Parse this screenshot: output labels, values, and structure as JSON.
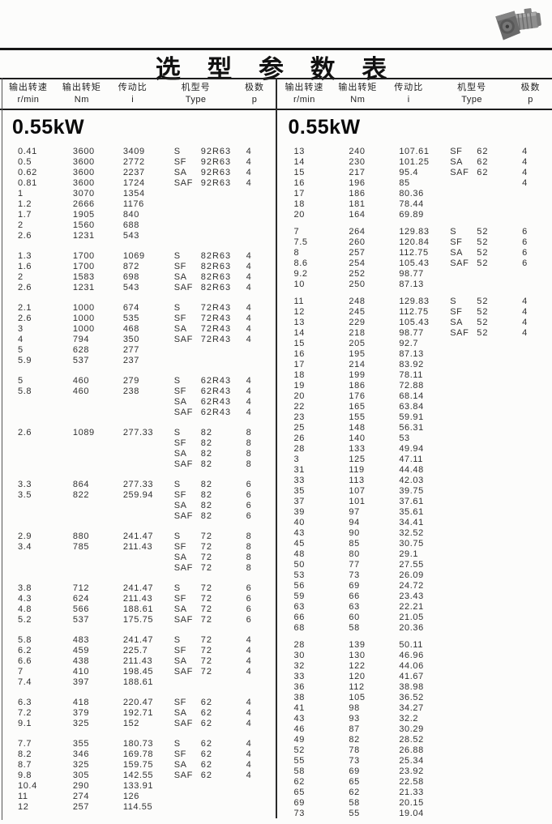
{
  "page": {
    "title": "选 型 参 数 表"
  },
  "table": {
    "columns": [
      {
        "name": "输出转速",
        "unit": "r/min"
      },
      {
        "name": "输出转矩",
        "unit": "Nm"
      },
      {
        "name": "传动比",
        "unit": "i"
      },
      {
        "name": "机型号",
        "unit": "Type"
      },
      {
        "name": "极数",
        "unit": "p"
      }
    ],
    "left": {
      "section_title": "0.55kW",
      "blocks": [
        [
          [
            "0.41",
            "3600",
            "3409",
            "S",
            "92R63",
            "4"
          ],
          [
            "0.5",
            "3600",
            "2772",
            "SF",
            "92R63",
            "4"
          ],
          [
            "0.62",
            "3600",
            "2237",
            "SA",
            "92R63",
            "4"
          ],
          [
            "0.81",
            "3600",
            "1724",
            "SAF",
            "92R63",
            "4"
          ],
          [
            "1",
            "3070",
            "1354",
            "",
            "",
            ""
          ],
          [
            "1.2",
            "2666",
            "1176",
            "",
            "",
            ""
          ],
          [
            "1.7",
            "1905",
            "840",
            "",
            "",
            ""
          ],
          [
            "2",
            "1560",
            "688",
            "",
            "",
            ""
          ],
          [
            "2.6",
            "1231",
            "543",
            "",
            "",
            ""
          ]
        ],
        [
          [
            "1.3",
            "1700",
            "1069",
            "S",
            "82R63",
            "4"
          ],
          [
            "1.6",
            "1700",
            "872",
            "SF",
            "82R63",
            "4"
          ],
          [
            "2",
            "1583",
            "698",
            "SA",
            "82R63",
            "4"
          ],
          [
            "2.6",
            "1231",
            "543",
            "SAF",
            "82R63",
            "4"
          ]
        ],
        [
          [
            "2.1",
            "1000",
            "674",
            "S",
            "72R43",
            "4"
          ],
          [
            "2.6",
            "1000",
            "535",
            "SF",
            "72R43",
            "4"
          ],
          [
            "3",
            "1000",
            "468",
            "SA",
            "72R43",
            "4"
          ],
          [
            "4",
            "794",
            "350",
            "SAF",
            "72R43",
            "4"
          ],
          [
            "5",
            "628",
            "277",
            "",
            "",
            ""
          ],
          [
            "5.9",
            "537",
            "237",
            "",
            "",
            ""
          ]
        ],
        [
          [
            "5",
            "460",
            "279",
            "S",
            "62R43",
            "4"
          ],
          [
            "5.8",
            "460",
            "238",
            "SF",
            "62R43",
            "4"
          ],
          [
            "",
            "",
            "",
            "SA",
            "62R43",
            "4"
          ],
          [
            "",
            "",
            "",
            "SAF",
            "62R43",
            "4"
          ]
        ],
        [
          [
            "2.6",
            "1089",
            "277.33",
            "S",
            "82",
            "8"
          ],
          [
            "",
            "",
            "",
            "SF",
            "82",
            "8"
          ],
          [
            "",
            "",
            "",
            "SA",
            "82",
            "8"
          ],
          [
            "",
            "",
            "",
            "SAF",
            "82",
            "8"
          ]
        ],
        [
          [
            "3.3",
            "864",
            "277.33",
            "S",
            "82",
            "6"
          ],
          [
            "3.5",
            "822",
            "259.94",
            "SF",
            "82",
            "6"
          ],
          [
            "",
            "",
            "",
            "SA",
            "82",
            "6"
          ],
          [
            "",
            "",
            "",
            "SAF",
            "82",
            "6"
          ]
        ],
        [
          [
            "2.9",
            "880",
            "241.47",
            "S",
            "72",
            "8"
          ],
          [
            "3.4",
            "785",
            "211.43",
            "SF",
            "72",
            "8"
          ],
          [
            "",
            "",
            "",
            "SA",
            "72",
            "8"
          ],
          [
            "",
            "",
            "",
            "SAF",
            "72",
            "8"
          ]
        ],
        [
          [
            "3.8",
            "712",
            "241.47",
            "S",
            "72",
            "6"
          ],
          [
            "4.3",
            "624",
            "211.43",
            "SF",
            "72",
            "6"
          ],
          [
            "4.8",
            "566",
            "188.61",
            "SA",
            "72",
            "6"
          ],
          [
            "5.2",
            "537",
            "175.75",
            "SAF",
            "72",
            "6"
          ]
        ],
        [
          [
            "5.8",
            "483",
            "241.47",
            "S",
            "72",
            "4"
          ],
          [
            "6.2",
            "459",
            "225.7",
            "SF",
            "72",
            "4"
          ],
          [
            "6.6",
            "438",
            "211.43",
            "SA",
            "72",
            "4"
          ],
          [
            "7",
            "410",
            "198.45",
            "SAF",
            "72",
            "4"
          ],
          [
            "7.4",
            "397",
            "188.61",
            "",
            "",
            ""
          ]
        ],
        [
          [
            "6.3",
            "418",
            "220.47",
            "SF",
            "62",
            "4"
          ],
          [
            "7.2",
            "379",
            "192.71",
            "SA",
            "62",
            "4"
          ],
          [
            "9.1",
            "325",
            "152",
            "SAF",
            "62",
            "4"
          ]
        ],
        [
          [
            "7.7",
            "355",
            "180.73",
            "S",
            "62",
            "4"
          ],
          [
            "8.2",
            "346",
            "169.78",
            "SF",
            "62",
            "4"
          ],
          [
            "8.7",
            "325",
            "159.75",
            "SA",
            "62",
            "4"
          ],
          [
            "9.8",
            "305",
            "142.55",
            "SAF",
            "62",
            "4"
          ],
          [
            "10.4",
            "290",
            "133.91",
            "",
            "",
            ""
          ],
          [
            "11",
            "274",
            "126",
            "",
            "",
            ""
          ],
          [
            "12",
            "257",
            "114.55",
            "",
            "",
            ""
          ]
        ]
      ]
    },
    "right": {
      "section_title": "0.55kW",
      "blocks": [
        [
          [
            "13",
            "240",
            "107.61",
            "SF",
            "62",
            "4"
          ],
          [
            "14",
            "230",
            "101.25",
            "SA",
            "62",
            "4"
          ],
          [
            "15",
            "217",
            "95.4",
            "SAF",
            "62",
            "4"
          ],
          [
            "16",
            "196",
            "85",
            "",
            "",
            "4"
          ],
          [
            "17",
            "186",
            "80.36",
            "",
            "",
            ""
          ],
          [
            "18",
            "181",
            "78.44",
            "",
            "",
            ""
          ],
          [
            "20",
            "164",
            "69.89",
            "",
            "",
            ""
          ]
        ],
        [
          [
            "7",
            "264",
            "129.83",
            "S",
            "52",
            "6"
          ],
          [
            "7.5",
            "260",
            "120.84",
            "SF",
            "52",
            "6"
          ],
          [
            "8",
            "257",
            "112.75",
            "SA",
            "52",
            "6"
          ],
          [
            "8.6",
            "254",
            "105.43",
            "SAF",
            "52",
            "6"
          ],
          [
            "9.2",
            "252",
            "98.77",
            "",
            "",
            ""
          ],
          [
            "10",
            "250",
            "87.13",
            "",
            "",
            ""
          ]
        ],
        [
          [
            "11",
            "248",
            "129.83",
            "S",
            "52",
            "4"
          ],
          [
            "12",
            "245",
            "112.75",
            "SF",
            "52",
            "4"
          ],
          [
            "13",
            "229",
            "105.43",
            "SA",
            "52",
            "4"
          ],
          [
            "14",
            "218",
            "98.77",
            "SAF",
            "52",
            "4"
          ],
          [
            "15",
            "205",
            "92.7",
            "",
            "",
            ""
          ],
          [
            "16",
            "195",
            "87.13",
            "",
            "",
            ""
          ],
          [
            "17",
            "214",
            "83.92",
            "",
            "",
            ""
          ],
          [
            "18",
            "199",
            "78.11",
            "",
            "",
            ""
          ],
          [
            "19",
            "186",
            "72.88",
            "",
            "",
            ""
          ],
          [
            "20",
            "176",
            "68.14",
            "",
            "",
            ""
          ],
          [
            "22",
            "165",
            "63.84",
            "",
            "",
            ""
          ],
          [
            "23",
            "155",
            "59.91",
            "",
            "",
            ""
          ],
          [
            "25",
            "148",
            "56.31",
            "",
            "",
            ""
          ],
          [
            "26",
            "140",
            "53",
            "",
            "",
            ""
          ],
          [
            "28",
            "133",
            "49.94",
            "",
            "",
            ""
          ],
          [
            "3",
            "125",
            "47.11",
            "",
            "",
            ""
          ],
          [
            "31",
            "119",
            "44.48",
            "",
            "",
            ""
          ],
          [
            "33",
            "113",
            "42.03",
            "",
            "",
            ""
          ],
          [
            "35",
            "107",
            "39.75",
            "",
            "",
            ""
          ],
          [
            "37",
            "101",
            "37.61",
            "",
            "",
            ""
          ],
          [
            "39",
            "97",
            "35.61",
            "",
            "",
            ""
          ],
          [
            "40",
            "94",
            "34.41",
            "",
            "",
            ""
          ],
          [
            "43",
            "90",
            "32.52",
            "",
            "",
            ""
          ],
          [
            "45",
            "85",
            "30.75",
            "",
            "",
            ""
          ],
          [
            "48",
            "80",
            "29.1",
            "",
            "",
            ""
          ],
          [
            "50",
            "77",
            "27.55",
            "",
            "",
            ""
          ],
          [
            "53",
            "73",
            "26.09",
            "",
            "",
            ""
          ],
          [
            "56",
            "69",
            "24.72",
            "",
            "",
            ""
          ],
          [
            "59",
            "66",
            "23.43",
            "",
            "",
            ""
          ],
          [
            "63",
            "63",
            "22.21",
            "",
            "",
            ""
          ],
          [
            "66",
            "60",
            "21.05",
            "",
            "",
            ""
          ],
          [
            "68",
            "58",
            "20.36",
            "",
            "",
            ""
          ]
        ],
        [
          [
            "28",
            "139",
            "50.11",
            "",
            "",
            ""
          ],
          [
            "30",
            "130",
            "46.96",
            "",
            "",
            ""
          ],
          [
            "32",
            "122",
            "44.06",
            "",
            "",
            ""
          ],
          [
            "33",
            "120",
            "41.67",
            "",
            "",
            ""
          ],
          [
            "36",
            "112",
            "38.98",
            "",
            "",
            ""
          ],
          [
            "38",
            "105",
            "36.52",
            "",
            "",
            ""
          ],
          [
            "41",
            "98",
            "34.27",
            "",
            "",
            ""
          ],
          [
            "43",
            "93",
            "32.2",
            "",
            "",
            ""
          ],
          [
            "46",
            "87",
            "30.29",
            "",
            "",
            ""
          ],
          [
            "49",
            "82",
            "28.52",
            "",
            "",
            ""
          ],
          [
            "52",
            "78",
            "26.88",
            "",
            "",
            ""
          ],
          [
            "55",
            "73",
            "25.34",
            "",
            "",
            ""
          ],
          [
            "58",
            "69",
            "23.92",
            "",
            "",
            ""
          ],
          [
            "62",
            "65",
            "22.58",
            "",
            "",
            ""
          ],
          [
            "65",
            "62",
            "21.33",
            "",
            "",
            ""
          ],
          [
            "69",
            "58",
            "20.15",
            "",
            "",
            ""
          ],
          [
            "73",
            "55",
            "19.04",
            "",
            "",
            ""
          ]
        ]
      ]
    }
  }
}
